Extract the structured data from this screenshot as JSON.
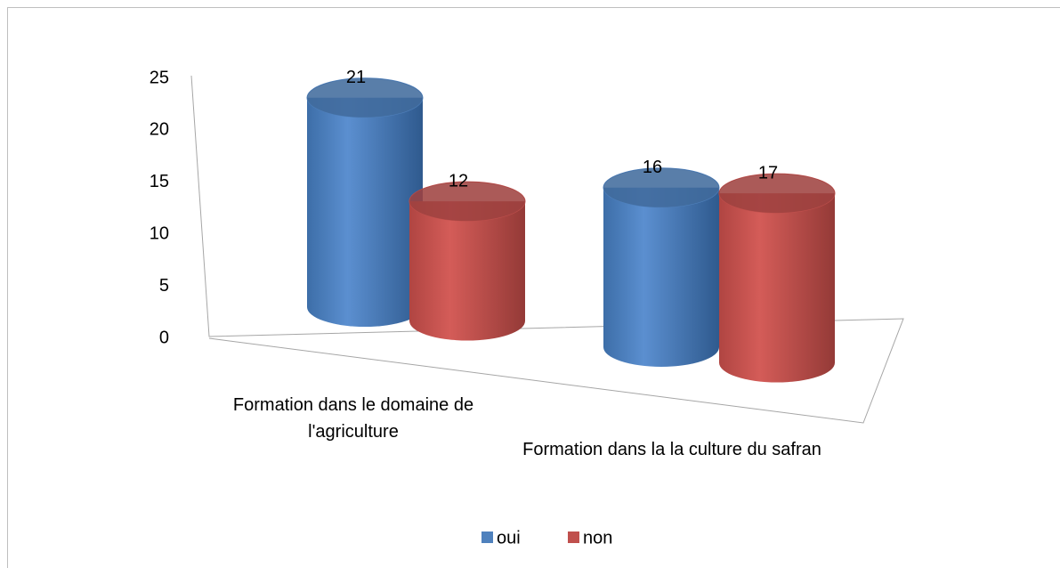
{
  "chart_data": {
    "type": "bar3d",
    "categories": [
      "Formation dans le domaine de l'agriculture",
      "Formation dans la la culture du safran"
    ],
    "series": [
      {
        "name": "oui",
        "color": "#4f81bd",
        "values": [
          21,
          16
        ]
      },
      {
        "name": "non",
        "color": "#c0504d",
        "values": [
          12,
          17
        ]
      }
    ],
    "ylim": [
      0,
      25
    ],
    "yticks": [
      0,
      5,
      10,
      15,
      20,
      25
    ],
    "legend": "bottom"
  }
}
